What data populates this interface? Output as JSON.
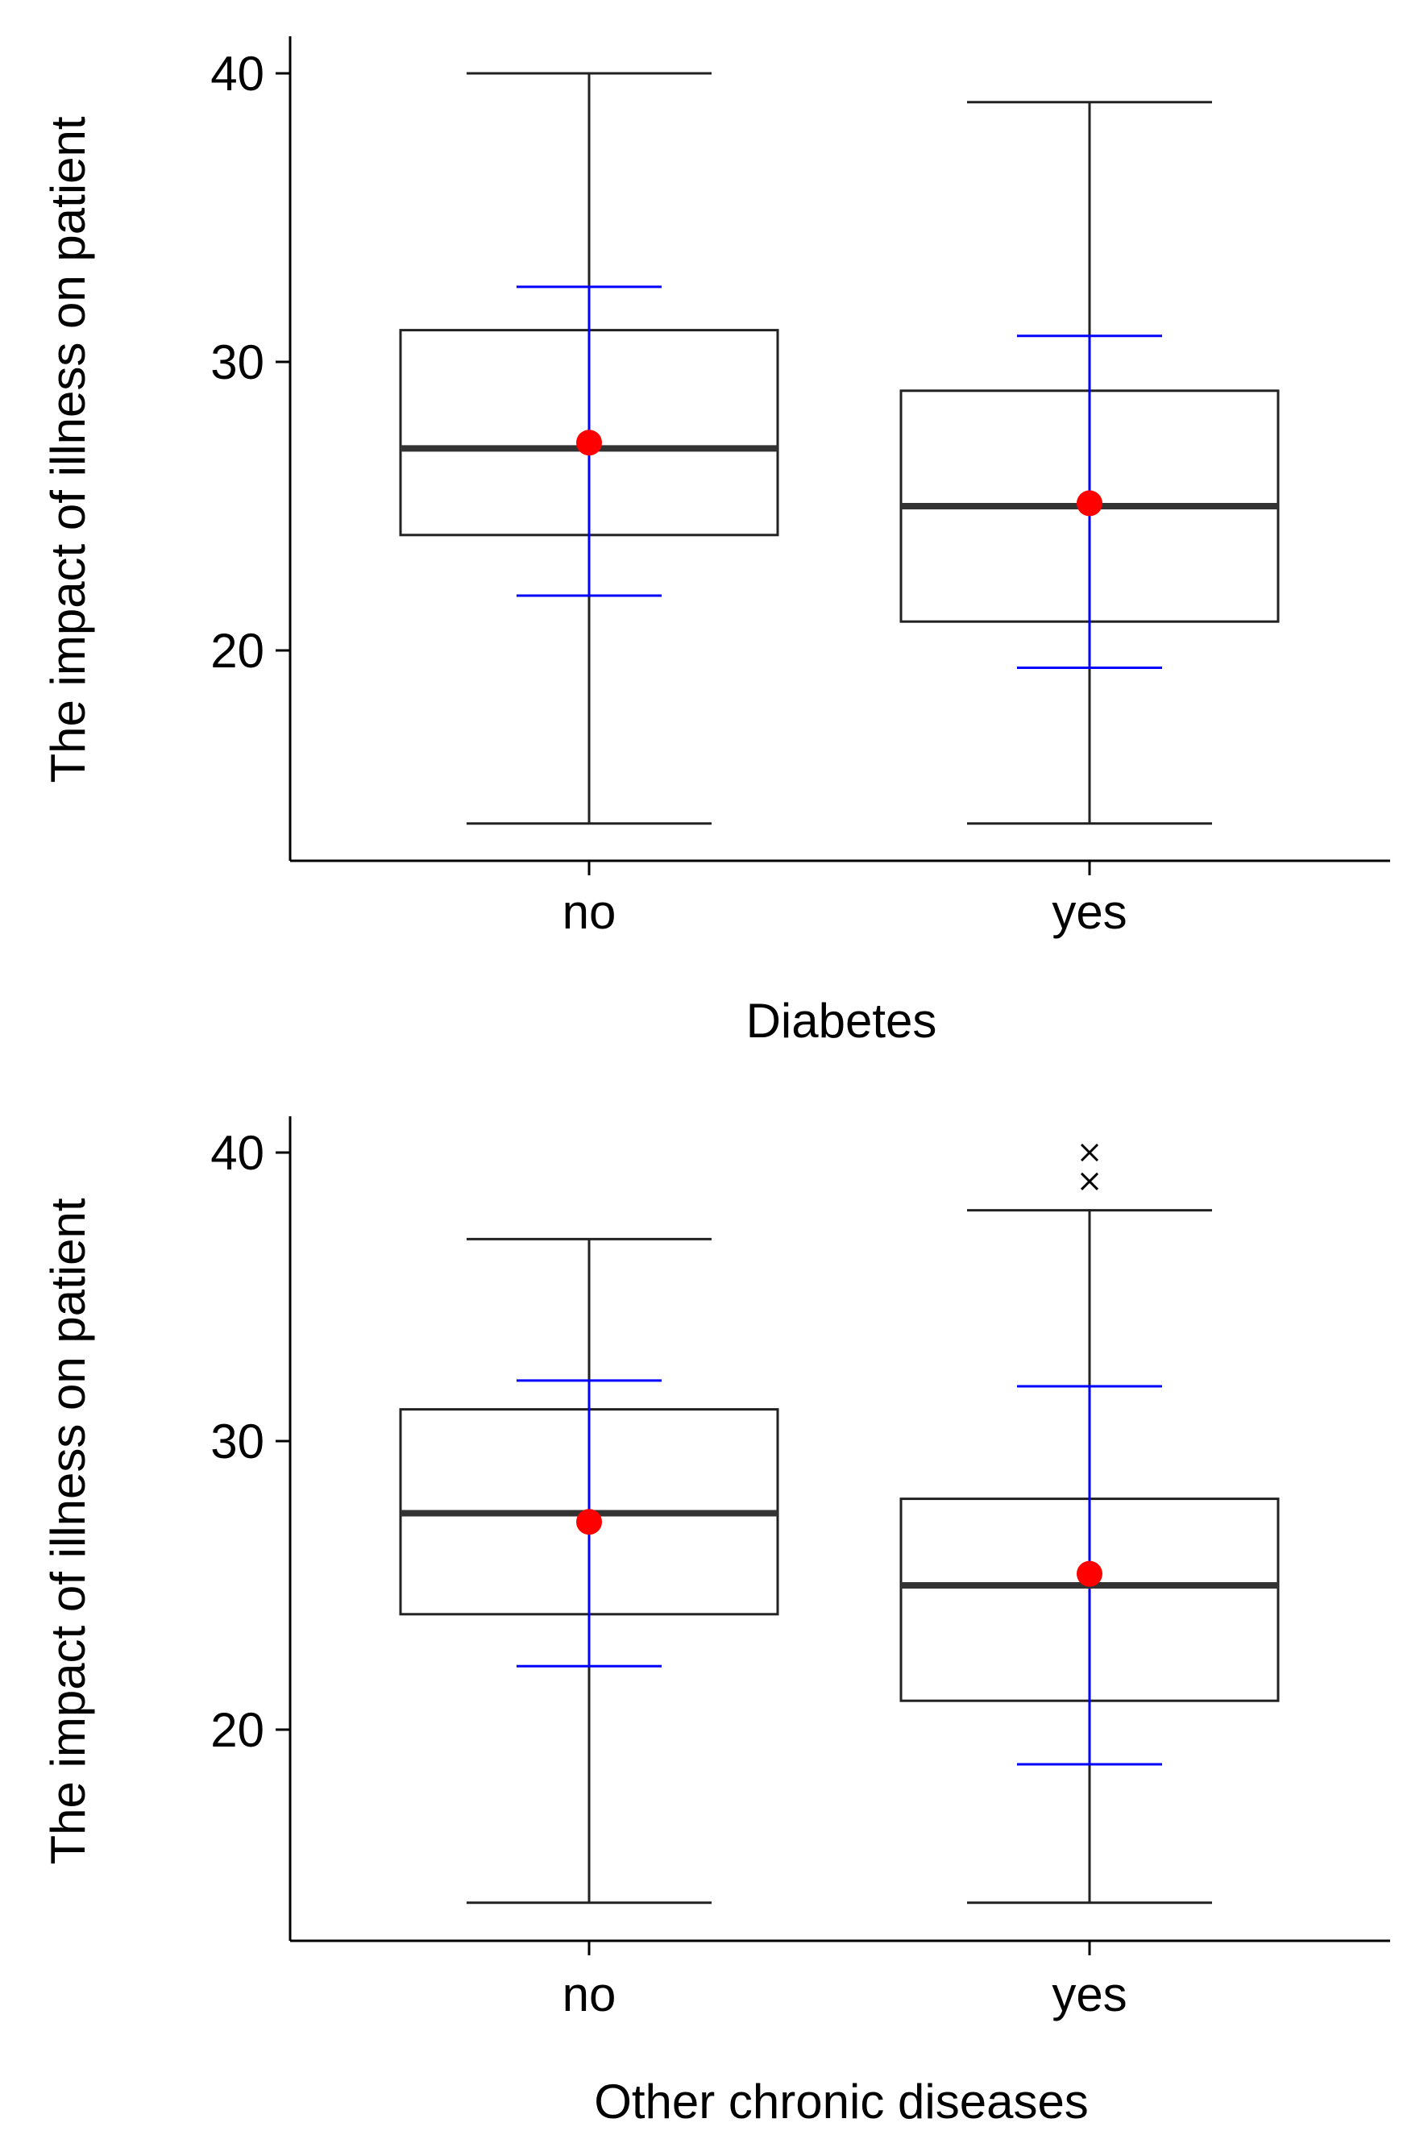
{
  "colors": {
    "box": "#222222",
    "median": "#333333",
    "mean_marker": "#ff0000",
    "sd_bar": "#0000ff",
    "outlier": "#000000"
  },
  "chart_data": [
    {
      "type": "box",
      "title": "",
      "xlabel": "Diabetes",
      "ylabel": "The impact of illness on patient",
      "ylim": [
        13,
        41
      ],
      "yticks": [
        20,
        30,
        40
      ],
      "grid": false,
      "categories": [
        "no",
        "yes"
      ],
      "boxes": [
        {
          "category": "no",
          "whisker_low": 14,
          "q1": 24,
          "median": 27,
          "q3": 31.1,
          "whisker_high": 40,
          "mean": 27.2,
          "sd_low": 21.9,
          "sd_high": 32.6,
          "outliers": []
        },
        {
          "category": "yes",
          "whisker_low": 14,
          "q1": 21,
          "median": 25,
          "q3": 29,
          "whisker_high": 39,
          "mean": 25.1,
          "sd_low": 19.4,
          "sd_high": 30.9,
          "outliers": []
        }
      ]
    },
    {
      "type": "box",
      "title": "",
      "xlabel": "Other chronic diseases",
      "ylabel": "The impact of illness on patient",
      "ylim": [
        13,
        41
      ],
      "yticks": [
        20,
        30,
        40
      ],
      "grid": false,
      "categories": [
        "no",
        "yes"
      ],
      "boxes": [
        {
          "category": "no",
          "whisker_low": 14,
          "q1": 24,
          "median": 27.5,
          "q3": 31.1,
          "whisker_high": 37,
          "mean": 27.2,
          "sd_low": 22.2,
          "sd_high": 32.1,
          "outliers": []
        },
        {
          "category": "yes",
          "whisker_low": 14,
          "q1": 21,
          "median": 25,
          "q3": 28,
          "whisker_high": 38,
          "mean": 25.4,
          "sd_low": 18.8,
          "sd_high": 31.9,
          "outliers": [
            39,
            40
          ]
        }
      ]
    }
  ]
}
